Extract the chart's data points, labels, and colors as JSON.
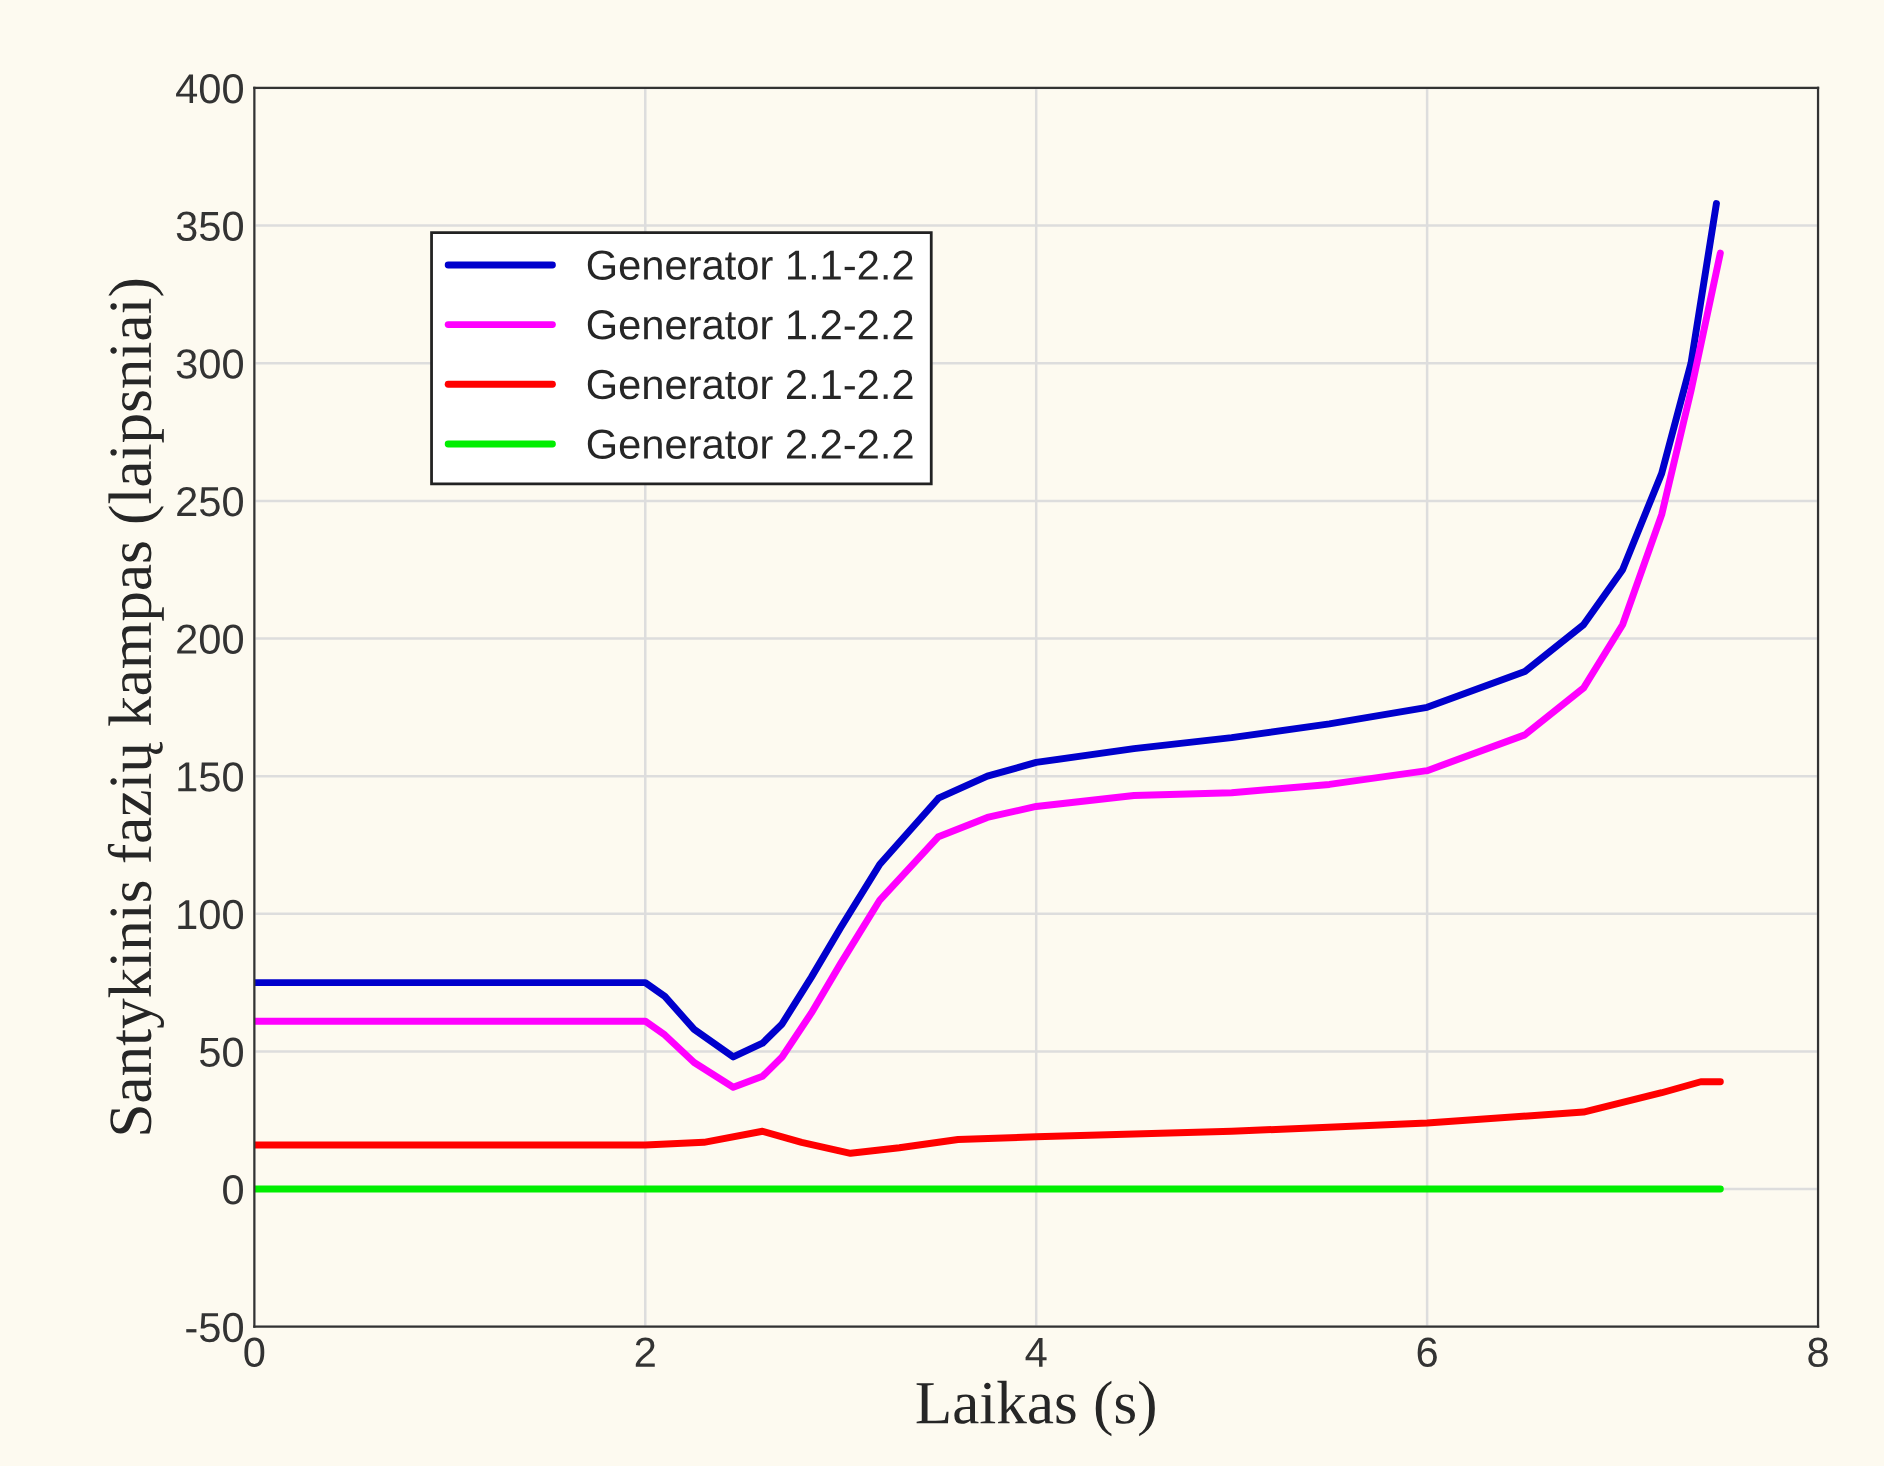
{
  "chart_data": {
    "type": "line",
    "xlabel": "Laikas (s)",
    "ylabel": "Santykinis fazių kampas (laipsniai)",
    "xlim": [
      0,
      8
    ],
    "xticks": [
      0,
      2,
      4,
      6,
      8
    ],
    "ylim": [
      -50,
      400
    ],
    "yticks": [
      -50,
      0,
      50,
      100,
      150,
      200,
      250,
      300,
      350,
      400
    ],
    "grid": true,
    "legend": "top left",
    "series": [
      {
        "name": "Generator 1.1-2.2",
        "color": "#0000cc",
        "x": [
          0,
          2.0,
          2.1,
          2.25,
          2.45,
          2.6,
          2.7,
          2.85,
          3.0,
          3.2,
          3.5,
          3.75,
          4.0,
          4.5,
          5.0,
          5.5,
          6.0,
          6.5,
          6.8,
          7.0,
          7.2,
          7.35,
          7.48
        ],
        "values": [
          75,
          75,
          70,
          58,
          48,
          53,
          60,
          77,
          95,
          118,
          142,
          150,
          155,
          160,
          164,
          169,
          175,
          188,
          205,
          225,
          260,
          300,
          358
        ]
      },
      {
        "name": "Generator 1.2-2.2",
        "color": "#ff00ff",
        "x": [
          0,
          2.0,
          2.1,
          2.25,
          2.45,
          2.6,
          2.7,
          2.85,
          3.0,
          3.2,
          3.5,
          3.75,
          4.0,
          4.5,
          5.0,
          5.5,
          6.0,
          6.5,
          6.8,
          7.0,
          7.2,
          7.35,
          7.5
        ],
        "values": [
          61,
          61,
          56,
          46,
          37,
          41,
          48,
          64,
          82,
          105,
          128,
          135,
          139,
          143,
          144,
          147,
          152,
          165,
          182,
          205,
          245,
          290,
          340
        ]
      },
      {
        "name": "Generator 2.1-2.2",
        "color": "#ff0000",
        "x": [
          0,
          2.0,
          2.3,
          2.6,
          2.8,
          3.05,
          3.3,
          3.6,
          4.0,
          5.0,
          6.0,
          6.8,
          7.2,
          7.4,
          7.5
        ],
        "values": [
          16,
          16,
          17,
          21,
          17,
          13,
          15,
          18,
          19,
          21,
          24,
          28,
          35,
          39,
          39
        ]
      },
      {
        "name": "Generator 2.2-2.2",
        "color": "#00ee00",
        "x": [
          0,
          7.5
        ],
        "values": [
          0,
          0
        ]
      }
    ]
  }
}
